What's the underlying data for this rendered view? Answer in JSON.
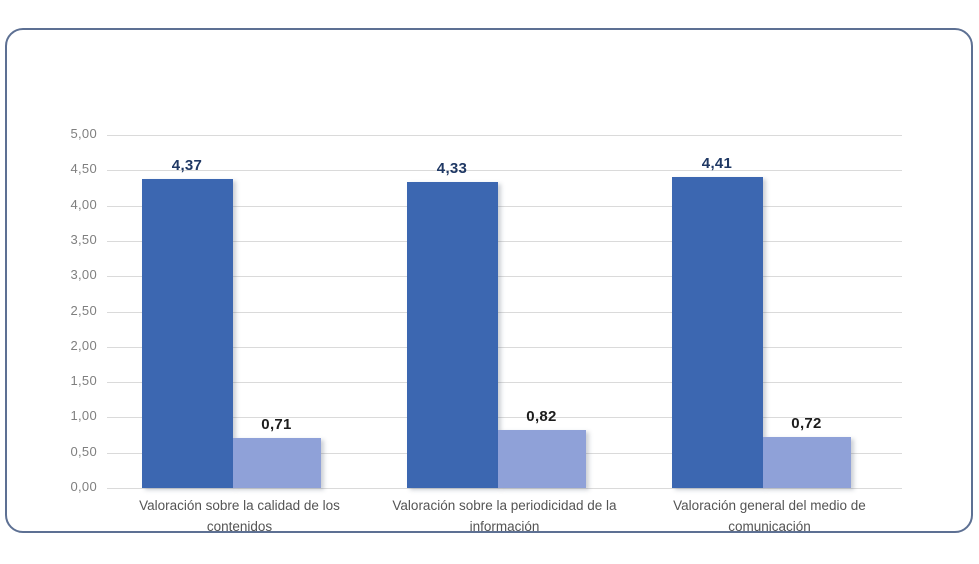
{
  "card": {
    "border_color": "#5d7093",
    "background": "#ffffff"
  },
  "chart_data": {
    "type": "bar",
    "title": "",
    "xlabel": "",
    "ylabel": "",
    "legend": "none",
    "grid": true,
    "ylim": [
      0,
      5
    ],
    "ytick_step": 0.5,
    "ytick_labels": [
      "0,00",
      "0,50",
      "1,00",
      "1,50",
      "2,00",
      "2,50",
      "3,00",
      "3,50",
      "4,00",
      "4,50",
      "5,00"
    ],
    "categories": [
      "Valoración sobre la calidad de los contenidos",
      "Valoración sobre la periodicidad de la información",
      "Valoración general del medio de comunicación"
    ],
    "series": [
      {
        "name": "dark-blue-series",
        "color": "#3c67b1",
        "label_color": "#1f3864",
        "values": [
          4.37,
          4.33,
          4.41
        ],
        "labels": [
          "4,37",
          "4,33",
          "4,41"
        ]
      },
      {
        "name": "light-blue-series",
        "color": "#8fa1d8",
        "label_color": "#1c1c1c",
        "values": [
          0.71,
          0.82,
          0.72
        ],
        "labels": [
          "0,71",
          "0,82",
          "0,72"
        ]
      }
    ],
    "gridline_color": "#dadada",
    "tick_label_color": "#7f7f7f",
    "category_label_color": "#545454"
  }
}
